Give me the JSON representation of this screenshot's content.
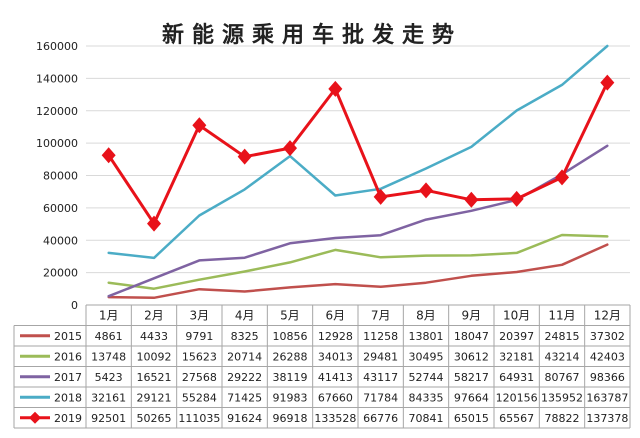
{
  "chart_data": {
    "type": "line",
    "title": "新能源乘用车批发走势",
    "categories": [
      "1月",
      "2月",
      "3月",
      "4月",
      "5月",
      "6月",
      "7月",
      "8月",
      "9月",
      "10月",
      "11月",
      "12月"
    ],
    "ylim": [
      0,
      160000
    ],
    "yticks": [
      "0",
      "20000",
      "40000",
      "60000",
      "80000",
      "100000",
      "120000",
      "140000",
      "160000"
    ],
    "grid": true,
    "legend": "table-left",
    "series": [
      {
        "name": "2015",
        "color": "#C0504D",
        "marker": "none",
        "values": [
          4861,
          4433,
          9791,
          8325,
          10856,
          12928,
          11258,
          13801,
          18047,
          20397,
          24815,
          37302
        ],
        "labels": [
          "4861",
          "4433",
          "9791",
          "8325",
          "10856",
          "12928",
          "11258",
          "13801",
          "18047",
          "20397",
          "24815",
          "37302"
        ]
      },
      {
        "name": "2016",
        "color": "#9BBB59",
        "marker": "none",
        "values": [
          13748,
          10092,
          15623,
          20714,
          26288,
          34013,
          29481,
          30495,
          30612,
          32181,
          43214,
          42403
        ],
        "labels": [
          "13748",
          "10092",
          "15623",
          "20714",
          "26288",
          "34013",
          "29481",
          "30495",
          "30612",
          "32181",
          "43214",
          "42403"
        ]
      },
      {
        "name": "2017",
        "color": "#7F63A2",
        "marker": "none",
        "values": [
          5423,
          16521,
          27568,
          29222,
          38119,
          41413,
          43117,
          52744,
          58217,
          64931,
          80767,
          98366
        ],
        "labels": [
          "5423",
          "16521",
          "27568",
          "29222",
          "38119",
          "41413",
          "43117",
          "52744",
          "58217",
          "64931",
          "80767",
          "98366"
        ]
      },
      {
        "name": "2018",
        "color": "#4BACC6",
        "marker": "none",
        "values": [
          32161,
          29121,
          55284,
          71425,
          91983,
          67660,
          71784,
          84335,
          97664,
          120156,
          135952,
          163787
        ],
        "labels": [
          "32161",
          "29121",
          "55284",
          "71425",
          "91983",
          "67660",
          "71784",
          "84335",
          "97664",
          "120156",
          "135952",
          "163787"
        ]
      },
      {
        "name": "2019",
        "color": "#E8121A",
        "marker": "diamond",
        "values": [
          92501,
          50265,
          111035,
          91624,
          96918,
          133528,
          66776,
          70841,
          65015,
          65567,
          78822,
          137378
        ],
        "labels": [
          "92501",
          "50265",
          "111035",
          "91624",
          "96918",
          "133528",
          "66776",
          "70841",
          "65015",
          "65567",
          "78822",
          "137378"
        ]
      }
    ]
  }
}
